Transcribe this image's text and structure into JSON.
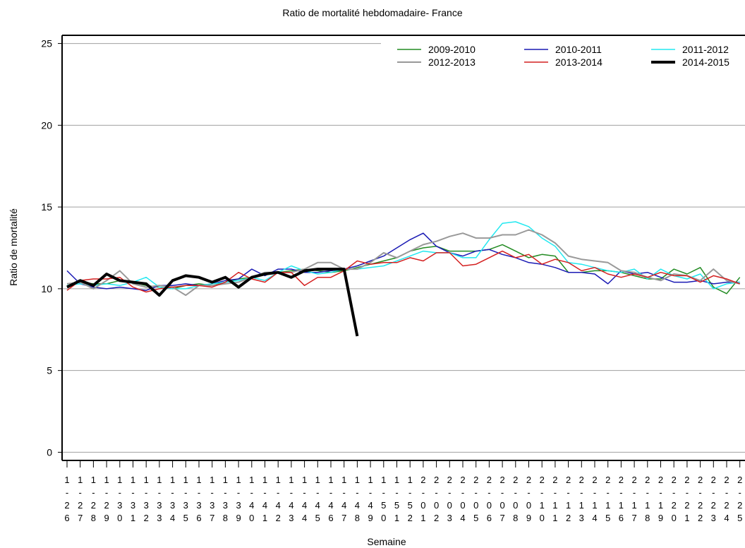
{
  "chart_data": {
    "type": "line",
    "title": "Ratio de mortalité hebdomadaire- France",
    "xlabel": "Semaine",
    "ylabel": "Ratio de mortalité",
    "categories": [
      "1-26",
      "1-27",
      "1-28",
      "1-29",
      "1-30",
      "1-31",
      "1-32",
      "1-33",
      "1-34",
      "1-35",
      "1-36",
      "1-37",
      "1-38",
      "1-39",
      "1-40",
      "1-41",
      "1-42",
      "1-43",
      "1-44",
      "1-45",
      "1-46",
      "1-47",
      "1-48",
      "1-49",
      "1-50",
      "1-51",
      "1-52",
      "2-01",
      "2-02",
      "2-03",
      "2-04",
      "2-05",
      "2-06",
      "2-07",
      "2-08",
      "2-09",
      "2-10",
      "2-11",
      "2-12",
      "2-13",
      "2-14",
      "2-15",
      "2-16",
      "2-17",
      "2-18",
      "2-19",
      "2-20",
      "2-21",
      "2-22",
      "2-23",
      "2-24",
      "2-25"
    ],
    "ylim": [
      -0.5,
      25.5
    ],
    "yticks": [
      0,
      5,
      10,
      15,
      20,
      25
    ],
    "grid": true,
    "legend": "upper right",
    "series": [
      {
        "name": "2009-2010",
        "color": "#228b22",
        "width": 1.5,
        "values": [
          10.2,
          10.4,
          10.3,
          10.3,
          10.5,
          10.4,
          10.2,
          10.1,
          10.0,
          10.2,
          10.3,
          10.2,
          10.4,
          10.6,
          10.7,
          10.9,
          11.0,
          11.1,
          11.2,
          11.1,
          11.0,
          11.1,
          11.3,
          11.5,
          11.7,
          11.9,
          12.3,
          12.5,
          12.6,
          12.3,
          12.3,
          12.3,
          12.4,
          12.7,
          12.3,
          11.9,
          12.1,
          12.0,
          11.0,
          11.0,
          11.1,
          11.1,
          11.0,
          10.8,
          10.6,
          10.6,
          11.2,
          10.9,
          11.3,
          10.1,
          9.7,
          10.7
        ]
      },
      {
        "name": "2010-2011",
        "color": "#1a1ab4",
        "width": 1.5,
        "values": [
          11.1,
          10.3,
          10.1,
          10.0,
          10.1,
          10.0,
          9.9,
          10.2,
          10.2,
          10.3,
          10.2,
          10.3,
          10.5,
          10.6,
          11.2,
          10.8,
          11.2,
          11.2,
          11.0,
          11.0,
          11.1,
          11.2,
          11.4,
          11.7,
          12.0,
          12.5,
          13.0,
          13.4,
          12.6,
          12.2,
          12.0,
          12.3,
          12.4,
          12.1,
          11.9,
          11.6,
          11.5,
          11.3,
          11.0,
          11.0,
          10.9,
          10.3,
          11.1,
          10.9,
          11.0,
          10.7,
          10.4,
          10.4,
          10.5,
          10.3,
          10.4,
          10.4
        ]
      },
      {
        "name": "2011-2012",
        "color": "#22e8f0",
        "width": 1.5,
        "values": [
          10.2,
          10.3,
          10.2,
          10.3,
          10.2,
          10.4,
          10.7,
          10.1,
          10.0,
          10.0,
          10.2,
          10.3,
          10.4,
          10.5,
          10.7,
          10.5,
          11.0,
          11.4,
          11.1,
          10.9,
          11.0,
          11.2,
          11.2,
          11.3,
          11.4,
          11.7,
          12.0,
          12.3,
          12.2,
          12.2,
          11.9,
          11.9,
          13.0,
          14.0,
          14.1,
          13.8,
          13.1,
          12.6,
          11.6,
          11.5,
          11.3,
          11.1,
          11.0,
          11.2,
          10.6,
          11.2,
          10.8,
          10.6,
          10.9,
          10.0,
          10.3,
          10.4
        ]
      },
      {
        "name": "2012-2013",
        "color": "#999999",
        "width": 2,
        "values": [
          10.3,
          10.4,
          10.0,
          10.5,
          11.1,
          10.3,
          10.1,
          10.2,
          10.1,
          9.6,
          10.2,
          10.2,
          10.3,
          10.4,
          10.7,
          11.0,
          11.0,
          11.0,
          11.2,
          11.6,
          11.6,
          11.2,
          11.2,
          11.6,
          12.2,
          11.9,
          12.3,
          12.7,
          12.9,
          13.2,
          13.4,
          13.1,
          13.1,
          13.3,
          13.3,
          13.6,
          13.3,
          12.8,
          12.0,
          11.8,
          11.7,
          11.6,
          11.1,
          11.0,
          10.7,
          10.5,
          10.9,
          10.8,
          10.5,
          11.2,
          10.5,
          10.3
        ]
      },
      {
        "name": "2013-2014",
        "color": "#d42020",
        "width": 1.5,
        "values": [
          9.9,
          10.5,
          10.6,
          10.6,
          10.7,
          10.1,
          9.8,
          10.0,
          10.1,
          10.2,
          10.2,
          10.1,
          10.4,
          11.0,
          10.6,
          10.4,
          11.0,
          11.0,
          10.2,
          10.7,
          10.7,
          11.1,
          11.7,
          11.5,
          11.6,
          11.6,
          11.9,
          11.7,
          12.2,
          12.2,
          11.4,
          11.5,
          11.9,
          12.3,
          11.9,
          12.1,
          11.5,
          11.8,
          11.6,
          11.1,
          11.3,
          10.9,
          10.7,
          10.9,
          10.7,
          11.0,
          10.8,
          10.8,
          10.4,
          10.8,
          10.6,
          10.3
        ]
      },
      {
        "name": "2014-2015",
        "color": "#000000",
        "width": 4,
        "values": [
          10.1,
          10.5,
          10.2,
          10.9,
          10.5,
          10.4,
          10.3,
          9.6,
          10.5,
          10.8,
          10.7,
          10.4,
          10.7,
          10.1,
          10.7,
          10.9,
          11.0,
          10.7,
          11.1,
          11.2,
          11.2,
          11.2,
          7.1,
          null,
          null,
          null,
          null,
          null,
          null,
          null,
          null,
          null,
          null,
          null,
          null,
          null,
          null,
          null,
          null,
          null,
          null,
          null,
          null,
          null,
          null,
          null,
          null,
          null,
          null,
          null,
          null,
          null
        ]
      }
    ]
  }
}
